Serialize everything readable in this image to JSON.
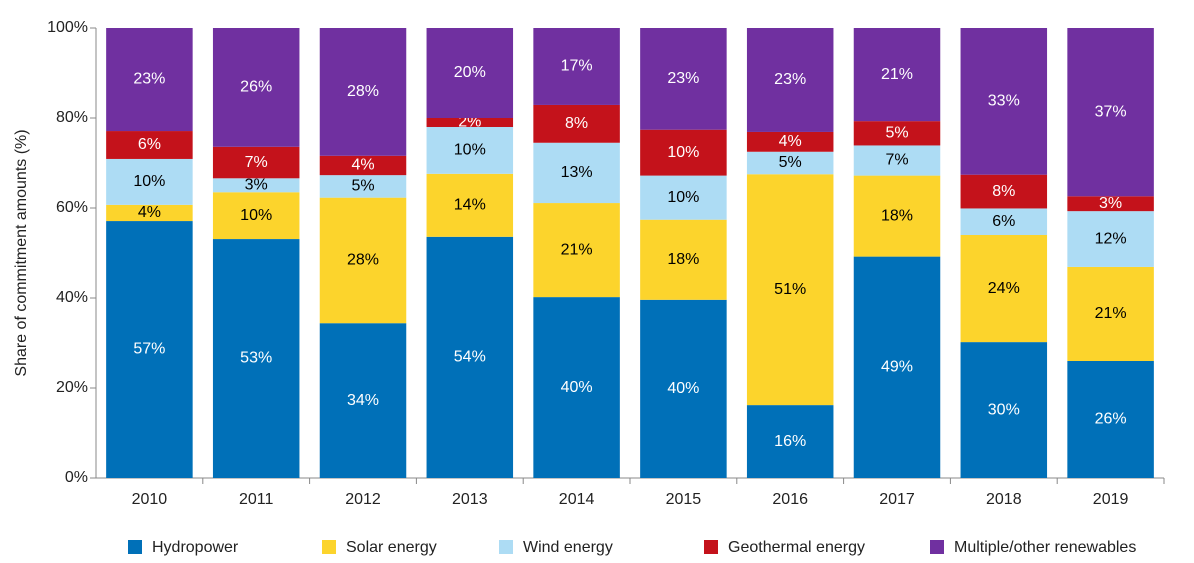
{
  "chart_data": {
    "type": "stacked_bar",
    "y_label": "Share of  commitment amounts (%)",
    "categories": [
      "2010",
      "2011",
      "2012",
      "2013",
      "2014",
      "2015",
      "2016",
      "2017",
      "2018",
      "2019"
    ],
    "ylim": [
      0,
      100
    ],
    "yticks": [
      {
        "value": 0,
        "label": "0%"
      },
      {
        "value": 20,
        "label": "20%"
      },
      {
        "value": 40,
        "label": "40%"
      },
      {
        "value": 60,
        "label": "60%"
      },
      {
        "value": 80,
        "label": "80%"
      },
      {
        "value": 100,
        "label": "100%"
      }
    ],
    "grid": false,
    "legend": "bottom",
    "series": [
      {
        "name": "Hydropower",
        "color": "#0070b8",
        "label_color": "#ffffff",
        "values": [
          57.1,
          53.1,
          34.4,
          53.6,
          40.2,
          39.6,
          16.2,
          49.2,
          30.2,
          26.0
        ],
        "value_labels": [
          "57%",
          "53%",
          "34%",
          "54%",
          "40%",
          "40%",
          "16%",
          "49%",
          "30%",
          "26%"
        ]
      },
      {
        "name": "Solar energy",
        "color": "#fcd42c",
        "label_color": "#000000",
        "values": [
          3.6,
          10.4,
          27.9,
          14.0,
          20.9,
          17.8,
          51.3,
          18.0,
          23.8,
          20.9
        ],
        "value_labels": [
          "4%",
          "10%",
          "28%",
          "14%",
          "21%",
          "18%",
          "51%",
          "18%",
          "24%",
          "21%"
        ]
      },
      {
        "name": "Wind energy",
        "color": "#addcf4",
        "label_color": "#000000",
        "values": [
          10.2,
          3.1,
          5.0,
          10.4,
          13.4,
          9.8,
          5.0,
          6.7,
          5.9,
          12.4
        ],
        "value_labels": [
          "10%",
          "3%",
          "5%",
          "10%",
          "13%",
          "10%",
          "5%",
          "7%",
          "6%",
          "12%"
        ]
      },
      {
        "name": "Geothermal energy",
        "color": "#c4121b",
        "label_color": "#ffffff",
        "values": [
          6.2,
          7.0,
          4.3,
          2.0,
          8.4,
          10.2,
          4.4,
          5.4,
          7.5,
          3.3
        ],
        "value_labels": [
          "6%",
          "7%",
          "4%",
          "2%",
          "8%",
          "10%",
          "4%",
          "5%",
          "8%",
          "3%"
        ]
      },
      {
        "name": "Multiple/other renewables",
        "color": "#7030a0",
        "label_color": "#ffffff",
        "values": [
          22.9,
          26.4,
          28.4,
          20.0,
          17.1,
          22.6,
          23.1,
          20.7,
          32.6,
          37.4
        ],
        "value_labels": [
          "23%",
          "26%",
          "28%",
          "20%",
          "17%",
          "23%",
          "23%",
          "21%",
          "33%",
          "37%"
        ]
      }
    ]
  }
}
